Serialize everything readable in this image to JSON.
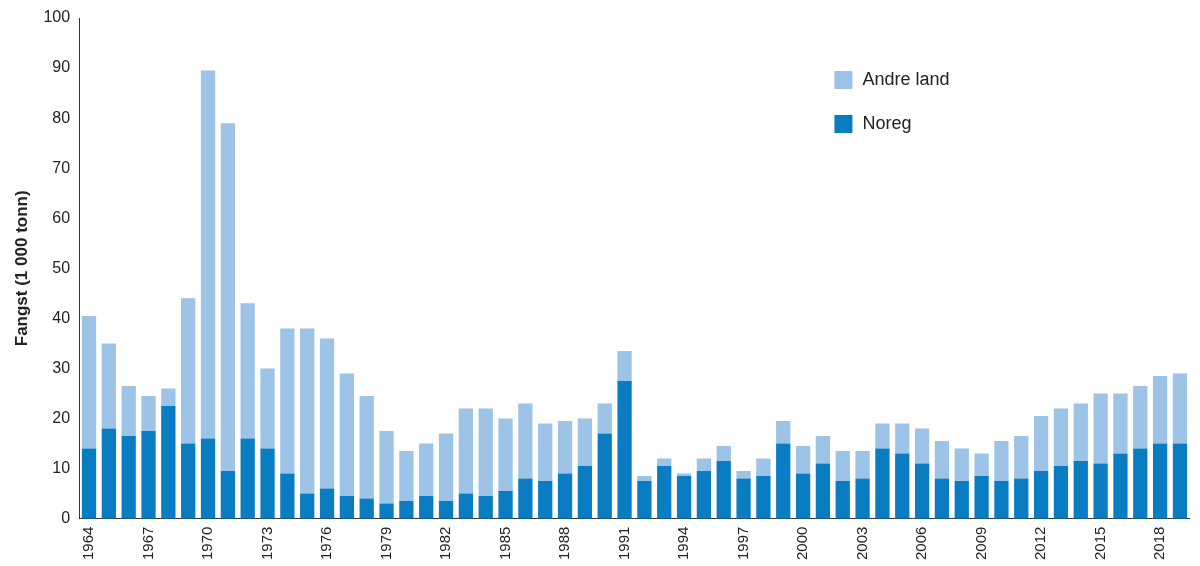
{
  "chart_data": {
    "type": "bar",
    "stacked": true,
    "y_label": "Fangst (1 000 tonn)",
    "categories": [
      "1964",
      null,
      null,
      "1967",
      null,
      null,
      "1970",
      null,
      null,
      "1973",
      null,
      null,
      "1976",
      null,
      null,
      "1979",
      null,
      null,
      "1982",
      null,
      null,
      "1985",
      null,
      null,
      "1988",
      null,
      null,
      "1991",
      null,
      null,
      "1994",
      null,
      null,
      "1997",
      null,
      null,
      "2000",
      null,
      null,
      "2003",
      null,
      null,
      "2006",
      null,
      null,
      "2009",
      null,
      null,
      "2012",
      null,
      null,
      "2015",
      null,
      null,
      "2018",
      null
    ],
    "series": [
      {
        "name": "Noreg",
        "color": "#0a7dc2",
        "values": [
          14,
          18,
          16.5,
          17.5,
          22.5,
          15,
          16,
          9.5,
          16,
          14,
          9,
          5,
          6,
          4.5,
          4,
          3,
          3.5,
          4.5,
          3.5,
          5,
          4.5,
          5.5,
          8,
          7.5,
          9,
          10.5,
          17,
          27.5,
          7.5,
          10.5,
          8.5,
          9.5,
          11.5,
          8,
          8.5,
          15,
          9,
          11,
          7.5,
          8,
          14,
          13,
          11,
          8,
          7.5,
          8.5,
          7.5,
          8,
          9.5,
          10.5,
          11.5,
          11,
          13,
          14,
          15,
          15
        ]
      },
      {
        "name": "Andre land",
        "color": "#9dc3e6",
        "values": [
          26.5,
          17,
          10,
          7,
          3.5,
          29,
          73.5,
          69.5,
          27,
          16,
          29,
          33,
          30,
          24.5,
          20.5,
          14.5,
          10,
          10.5,
          13.5,
          17,
          17.5,
          14.5,
          15,
          11.5,
          10.5,
          9.5,
          6,
          6,
          1,
          1.5,
          0.5,
          2.5,
          3,
          1.5,
          3.5,
          4.5,
          5.5,
          5.5,
          6,
          5.5,
          5,
          6,
          7,
          7.5,
          6.5,
          4.5,
          8,
          8.5,
          11,
          11.5,
          11.5,
          14,
          12,
          12.5,
          13.5,
          14
        ]
      }
    ],
    "ylim": [
      0,
      100
    ],
    "yticks": [
      0,
      10,
      20,
      30,
      40,
      50,
      60,
      70,
      80,
      90,
      100
    ],
    "grid": false,
    "legend": "top-right"
  }
}
